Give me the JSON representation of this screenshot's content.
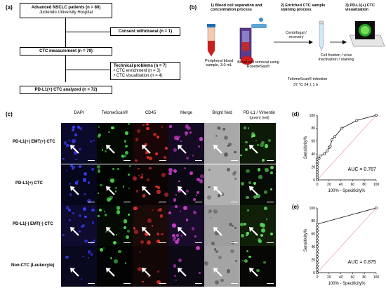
{
  "panels": {
    "a": "(a)",
    "b": "(b)",
    "c": "(c)",
    "d": "(d)",
    "e": "(e)"
  },
  "flow": {
    "box1_line1": "Advanced NSCLC patients (n = 80)",
    "box1_line2": "Juntendo University Hospital",
    "consent": "Consent withdrawal (n = 1)",
    "measure": "CTC measurement (n = 79)",
    "tech_title": "Technical problems (n = 7)",
    "tech_item1": "• CTC enrichment (n = 3)",
    "tech_item2": "• CTC visualisation (n = 4)",
    "final": "PD-L1(+) CTC analyzed (n = 72)"
  },
  "process": {
    "step1": "1) Blood cell separation and concentration process",
    "step2": "2) Enriched CTC sample staining process",
    "step3": "3) PD-L1(+) CTC visualization",
    "sample": "Peripheral blood sample, 3.0 mL",
    "removal": "Blood cell removal using RosetteSep®",
    "centrifugal": "Centrifugal / recovery",
    "fixation": "Cell fixation / virus inactivation / staining",
    "telomescan": "TelomeScan® infection",
    "conditions": "37 °C  24 ± 1 h"
  },
  "grid": {
    "columns": [
      "DAPI",
      "TelomeScan®",
      "CD45",
      "Merge",
      "Bright field",
      "PD-L1 / Vimentin"
    ],
    "pd_sub": "(green)        (red)",
    "rows": [
      "PD-L1(+) EMT(+) CTC",
      "PD-L1(+) CTC",
      "PD-L1(-) EMT(-) CTC",
      "Non-CTC (Leukocyte)"
    ]
  },
  "roc_d": {
    "ylabel": "Sensitivity%",
    "xlabel": "100% - Specificity%",
    "auc": "AUC = 0.787",
    "ticks": [
      "0",
      "20",
      "40",
      "60",
      "80",
      "100"
    ]
  },
  "roc_e": {
    "ylabel": "Sensitivity%",
    "xlabel": "100% - Specificity%",
    "auc": "AUC = 0.875",
    "ticks": [
      "0",
      "20",
      "40",
      "60",
      "80",
      "100"
    ]
  },
  "chart_data": [
    {
      "type": "line",
      "title": "",
      "xlabel": "100% - Specificity%",
      "ylabel": "Sensitivity%",
      "xlim": [
        0,
        100
      ],
      "ylim": [
        0,
        100
      ],
      "series": [
        {
          "values": [
            [
              0,
              0
            ],
            [
              0,
              4
            ],
            [
              0,
              8
            ],
            [
              0,
              12
            ],
            [
              0,
              16
            ],
            [
              0,
              20
            ],
            [
              0,
              24
            ],
            [
              0,
              28
            ],
            [
              0,
              32
            ],
            [
              3,
              33
            ],
            [
              5,
              37
            ],
            [
              12,
              40
            ],
            [
              17,
              45
            ],
            [
              20,
              50
            ],
            [
              22,
              52
            ],
            [
              25,
              62
            ],
            [
              30,
              67
            ],
            [
              42,
              80
            ],
            [
              67,
              92
            ],
            [
              100,
              100
            ]
          ]
        }
      ],
      "reference_line": [
        [
          0,
          0
        ],
        [
          100,
          100
        ]
      ],
      "annotation": "AUC = 0.787"
    },
    {
      "type": "line",
      "title": "",
      "xlabel": "100% - Specificity%",
      "ylabel": "Sensitivity%",
      "xlim": [
        0,
        100
      ],
      "ylim": [
        0,
        100
      ],
      "series": [
        {
          "values": [
            [
              0,
              0
            ],
            [
              0,
              5
            ],
            [
              0,
              10
            ],
            [
              0,
              15
            ],
            [
              0,
              20
            ],
            [
              0,
              25
            ],
            [
              0,
              30
            ],
            [
              0,
              35
            ],
            [
              0,
              40
            ],
            [
              0,
              45
            ],
            [
              0,
              50
            ],
            [
              0,
              55
            ],
            [
              0,
              60
            ],
            [
              0,
              65
            ],
            [
              0,
              70
            ],
            [
              0,
              75
            ],
            [
              100,
              100
            ]
          ]
        }
      ],
      "reference_line": [
        [
          0,
          0
        ],
        [
          100,
          100
        ]
      ],
      "annotation": "AUC = 0.875"
    }
  ]
}
